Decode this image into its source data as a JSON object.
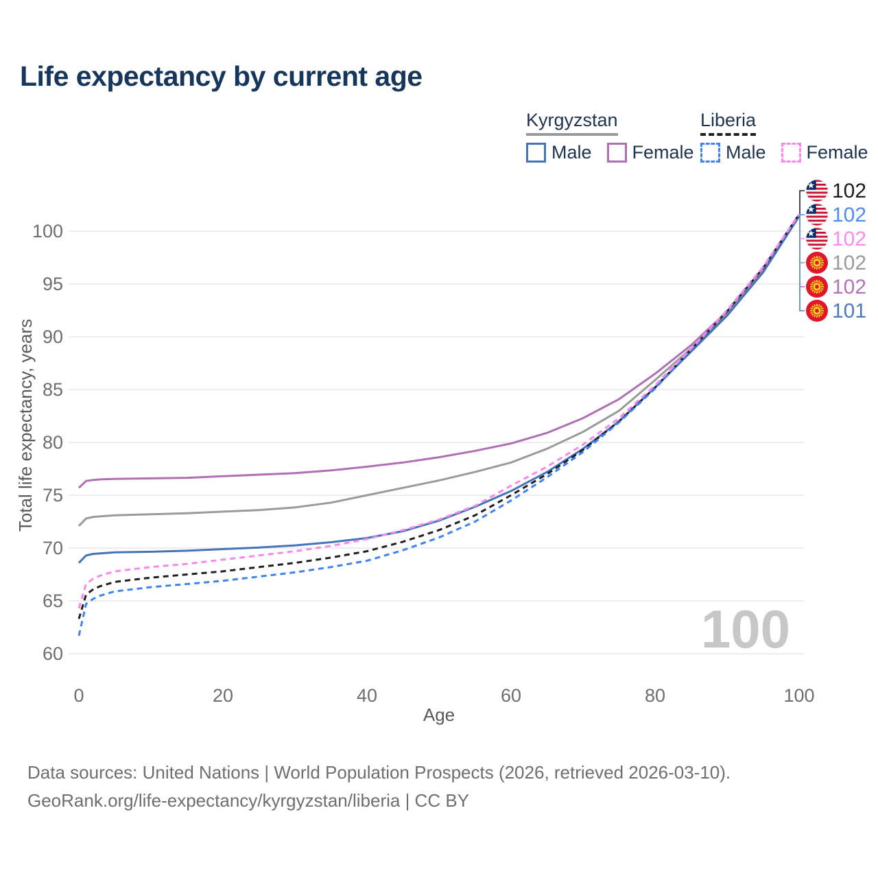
{
  "title": "Life expectancy by current age",
  "legend": {
    "groups": [
      {
        "label": "Kyrgyzstan",
        "underline_style": "solid",
        "underline_color": "#999999",
        "items": [
          {
            "label": "Male",
            "color": "#4573ba",
            "dashed": false
          },
          {
            "label": "Female",
            "color": "#b06fb5",
            "dashed": false
          }
        ]
      },
      {
        "label": "Liberia",
        "underline_style": "dashed",
        "underline_color": "#1f1f1f",
        "items": [
          {
            "label": "Male",
            "color": "#3e82f4",
            "dashed": true
          },
          {
            "label": "Female",
            "color": "#fb86ee",
            "dashed": true
          }
        ]
      }
    ]
  },
  "chart_data": {
    "type": "line",
    "title": "Life expectancy by current age",
    "xlabel": "Age",
    "ylabel": "Total life expectancy, years",
    "xlim": [
      0,
      100
    ],
    "ylim": [
      59,
      103
    ],
    "xticks": [
      0,
      20,
      40,
      60,
      80,
      100
    ],
    "yticks": [
      60,
      65,
      70,
      75,
      80,
      85,
      90,
      95,
      100
    ],
    "grid": "horizontal-only",
    "legend_position": "top-right",
    "watermark": "100",
    "series": [
      {
        "name": "Kyrgyzstan Both sexes",
        "country": "Kyrgyzstan",
        "sex": "both",
        "color": "#9a9a9a",
        "dashed": false,
        "points": [
          [
            0,
            72.1
          ],
          [
            1,
            72.8
          ],
          [
            2,
            72.95
          ],
          [
            3,
            73.0
          ],
          [
            5,
            73.1
          ],
          [
            10,
            73.2
          ],
          [
            15,
            73.3
          ],
          [
            20,
            73.45
          ],
          [
            25,
            73.6
          ],
          [
            30,
            73.85
          ],
          [
            35,
            74.3
          ],
          [
            40,
            75.0
          ],
          [
            45,
            75.7
          ],
          [
            50,
            76.4
          ],
          [
            55,
            77.2
          ],
          [
            60,
            78.1
          ],
          [
            65,
            79.4
          ],
          [
            70,
            81.0
          ],
          [
            75,
            83.0
          ],
          [
            80,
            85.9
          ],
          [
            85,
            88.9
          ],
          [
            90,
            92.2
          ],
          [
            95,
            96.4
          ],
          [
            100,
            101.5
          ]
        ]
      },
      {
        "name": "Kyrgyzstan Female",
        "country": "Kyrgyzstan",
        "sex": "female",
        "color": "#b06fb5",
        "dashed": false,
        "points": [
          [
            0,
            75.7
          ],
          [
            1,
            76.35
          ],
          [
            2,
            76.45
          ],
          [
            3,
            76.5
          ],
          [
            5,
            76.55
          ],
          [
            10,
            76.6
          ],
          [
            15,
            76.65
          ],
          [
            20,
            76.8
          ],
          [
            25,
            76.95
          ],
          [
            30,
            77.1
          ],
          [
            35,
            77.35
          ],
          [
            40,
            77.7
          ],
          [
            45,
            78.1
          ],
          [
            50,
            78.6
          ],
          [
            55,
            79.2
          ],
          [
            60,
            79.9
          ],
          [
            65,
            80.9
          ],
          [
            70,
            82.3
          ],
          [
            75,
            84.1
          ],
          [
            80,
            86.5
          ],
          [
            85,
            89.2
          ],
          [
            90,
            92.4
          ],
          [
            95,
            96.5
          ],
          [
            100,
            101.5
          ]
        ]
      },
      {
        "name": "Kyrgyzstan Male",
        "country": "Kyrgyzstan",
        "sex": "male",
        "color": "#4573ba",
        "dashed": false,
        "points": [
          [
            0,
            68.6
          ],
          [
            1,
            69.3
          ],
          [
            2,
            69.45
          ],
          [
            3,
            69.5
          ],
          [
            5,
            69.6
          ],
          [
            10,
            69.65
          ],
          [
            15,
            69.75
          ],
          [
            20,
            69.9
          ],
          [
            25,
            70.05
          ],
          [
            30,
            70.25
          ],
          [
            35,
            70.55
          ],
          [
            40,
            70.95
          ],
          [
            45,
            71.6
          ],
          [
            50,
            72.6
          ],
          [
            55,
            73.9
          ],
          [
            60,
            75.4
          ],
          [
            65,
            77.2
          ],
          [
            70,
            79.4
          ],
          [
            75,
            82.0
          ],
          [
            80,
            85.2
          ],
          [
            85,
            88.6
          ],
          [
            90,
            92.0
          ],
          [
            95,
            96.1
          ],
          [
            100,
            101.4
          ]
        ]
      },
      {
        "name": "Liberia Both sexes",
        "country": "Liberia",
        "sex": "both",
        "color": "#1f1f1f",
        "dashed": true,
        "points": [
          [
            0,
            63.3
          ],
          [
            1,
            65.6
          ],
          [
            2,
            66.1
          ],
          [
            3,
            66.4
          ],
          [
            5,
            66.8
          ],
          [
            10,
            67.2
          ],
          [
            15,
            67.5
          ],
          [
            20,
            67.8
          ],
          [
            25,
            68.2
          ],
          [
            30,
            68.6
          ],
          [
            35,
            69.1
          ],
          [
            40,
            69.7
          ],
          [
            45,
            70.6
          ],
          [
            50,
            71.7
          ],
          [
            55,
            73.1
          ],
          [
            60,
            75.0
          ],
          [
            65,
            77.0
          ],
          [
            70,
            79.3
          ],
          [
            75,
            82.0
          ],
          [
            80,
            85.2
          ],
          [
            85,
            88.8
          ],
          [
            90,
            92.4
          ],
          [
            95,
            96.5
          ],
          [
            100,
            101.6
          ]
        ]
      },
      {
        "name": "Liberia Male",
        "country": "Liberia",
        "sex": "male",
        "color": "#3e82f4",
        "dashed": true,
        "points": [
          [
            0,
            61.7
          ],
          [
            1,
            64.7
          ],
          [
            2,
            65.2
          ],
          [
            3,
            65.5
          ],
          [
            5,
            65.9
          ],
          [
            10,
            66.3
          ],
          [
            15,
            66.6
          ],
          [
            20,
            66.9
          ],
          [
            25,
            67.3
          ],
          [
            30,
            67.7
          ],
          [
            35,
            68.2
          ],
          [
            40,
            68.8
          ],
          [
            45,
            69.8
          ],
          [
            50,
            71.0
          ],
          [
            55,
            72.5
          ],
          [
            60,
            74.5
          ],
          [
            65,
            76.7
          ],
          [
            70,
            79.1
          ],
          [
            75,
            81.9
          ],
          [
            80,
            85.1
          ],
          [
            85,
            88.8
          ],
          [
            90,
            92.5
          ],
          [
            95,
            96.6
          ],
          [
            100,
            101.6
          ]
        ]
      },
      {
        "name": "Liberia Female",
        "country": "Liberia",
        "sex": "female",
        "color": "#fb86ee",
        "dashed": true,
        "points": [
          [
            0,
            64.3
          ],
          [
            1,
            66.6
          ],
          [
            2,
            67.1
          ],
          [
            3,
            67.4
          ],
          [
            5,
            67.8
          ],
          [
            10,
            68.2
          ],
          [
            15,
            68.5
          ],
          [
            20,
            68.9
          ],
          [
            25,
            69.3
          ],
          [
            30,
            69.7
          ],
          [
            35,
            70.2
          ],
          [
            40,
            70.85
          ],
          [
            45,
            71.7
          ],
          [
            50,
            72.7
          ],
          [
            55,
            74.0
          ],
          [
            60,
            75.9
          ],
          [
            65,
            77.7
          ],
          [
            70,
            79.8
          ],
          [
            75,
            82.3
          ],
          [
            80,
            85.4
          ],
          [
            85,
            88.9
          ],
          [
            90,
            92.5
          ],
          [
            95,
            96.6
          ],
          [
            100,
            101.6
          ]
        ]
      }
    ],
    "end_labels": [
      {
        "value": "102",
        "series": "Liberia Both sexes",
        "flag": "liberia",
        "color": "#1c1c1c"
      },
      {
        "value": "102",
        "series": "Liberia Male",
        "flag": "liberia",
        "color": "#4e8cf5"
      },
      {
        "value": "102",
        "series": "Liberia Female",
        "flag": "liberia",
        "color": "#fb8bf0"
      },
      {
        "value": "102",
        "series": "Kyrgyzstan Both sexes",
        "flag": "kyrgyzstan",
        "color": "#9b9b9b"
      },
      {
        "value": "102",
        "series": "Kyrgyzstan Female",
        "flag": "kyrgyzstan",
        "color": "#b273b8"
      },
      {
        "value": "101",
        "series": "Kyrgyzstan Male",
        "flag": "kyrgyzstan",
        "color": "#4e79c0"
      }
    ]
  },
  "footer": {
    "line1": "Data sources: United Nations | World Population Prospects (2026, retrieved 2026-03-10).",
    "line2": "GeoRank.org/life-expectancy/kyrgyzstan/liberia | CC BY"
  }
}
